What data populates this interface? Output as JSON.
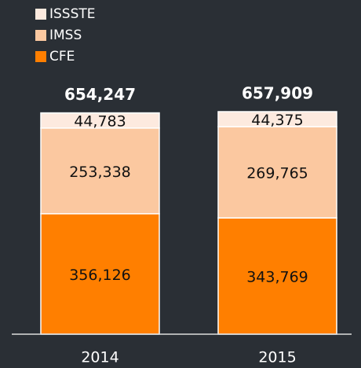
{
  "chart_data": {
    "type": "stacked_bar",
    "categories": [
      "2014",
      "2015"
    ],
    "series": [
      {
        "name": "CFE",
        "color": "#ff7f00",
        "values": [
          356126,
          343769
        ],
        "value_labels": [
          "356,126",
          "343,769"
        ]
      },
      {
        "name": "IMSS",
        "color": "#fbc8a0",
        "values": [
          253338,
          269765
        ],
        "value_labels": [
          "253,338",
          "269,765"
        ]
      },
      {
        "name": "ISSSTE",
        "color": "#fdeadf",
        "values": [
          44783,
          44375
        ],
        "value_labels": [
          "44,783",
          "44,375"
        ]
      }
    ],
    "total_labels": [
      "654,247",
      "657,909"
    ],
    "legend": "top-left"
  }
}
